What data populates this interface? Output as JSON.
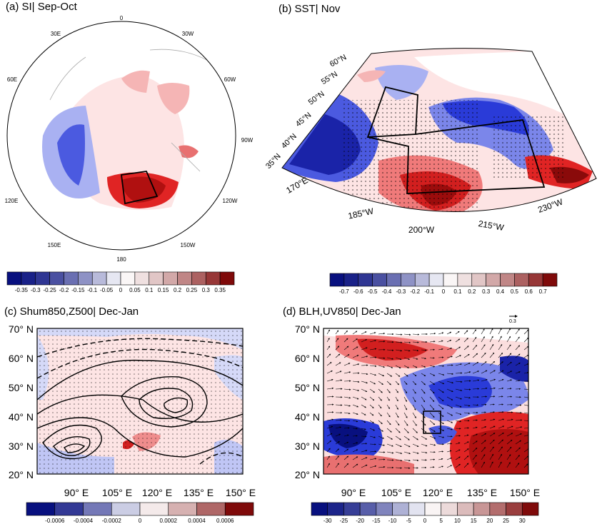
{
  "panels": [
    {
      "id": "a",
      "title": "(a) SI| Sep-Oct",
      "polar_labels": [
        "0",
        "30W",
        "60W",
        "90W",
        "120W",
        "150W",
        "180",
        "150E",
        "120E",
        "60E",
        "30E"
      ],
      "colorbar": {
        "labels": [
          "-0.35",
          "-0.3",
          "-0.25",
          "-0.2",
          "-0.15",
          "-0.1",
          "-0.05",
          "0",
          "0.05",
          "0.1",
          "0.15",
          "0.2",
          "0.25",
          "0.3",
          "0.35"
        ]
      }
    },
    {
      "id": "b",
      "title": "(b) SST| Nov",
      "lat_labels": [
        "60°N",
        "55°N",
        "50°N",
        "45°N",
        "40°N",
        "35°N"
      ],
      "lon_labels": [
        "170°E",
        "185°W",
        "200°W",
        "215°W",
        "230°W"
      ],
      "colorbar": {
        "labels": [
          "-0.7",
          "-0.6",
          "-0.5",
          "-0.4",
          "-0.3",
          "-0.2",
          "-0.1",
          "0",
          "0.1",
          "0.2",
          "0.3",
          "0.4",
          "0.5",
          "0.6",
          "0.7"
        ]
      }
    },
    {
      "id": "c",
      "title": "(c) Shum850,Z500| Dec-Jan",
      "lat_labels": [
        "70° N",
        "60° N",
        "50° N",
        "40° N",
        "30° N",
        "20° N"
      ],
      "lon_labels": [
        "90° E",
        "105° E",
        "120° E",
        "135° E",
        "150° E"
      ],
      "colorbar": {
        "labels": [
          "-0.0006",
          "-0.0004",
          "-0.0002",
          "0",
          "0.0002",
          "0.0004",
          "0.0006"
        ]
      }
    },
    {
      "id": "d",
      "title": "(d) BLH,UV850| Dec-Jan",
      "ref_vector": "0.3",
      "lat_labels": [
        "70° N",
        "60° N",
        "50° N",
        "40° N",
        "30° N",
        "20° N"
      ],
      "lon_labels": [
        "90° E",
        "105° E",
        "120° E",
        "135° E",
        "150° E"
      ],
      "colorbar": {
        "labels": [
          "-30",
          "-25",
          "-20",
          "-15",
          "-10",
          "-5",
          "0",
          "5",
          "10",
          "15",
          "20",
          "25",
          "30"
        ]
      }
    }
  ],
  "colors": {
    "dark_blue": "#08107f",
    "blue": "#2a3bd8",
    "light_blue": "#a9b1f2",
    "white": "#ffffff",
    "light_red": "#f5b5b5",
    "red": "#e02424",
    "dark_red": "#7f0a0a"
  }
}
